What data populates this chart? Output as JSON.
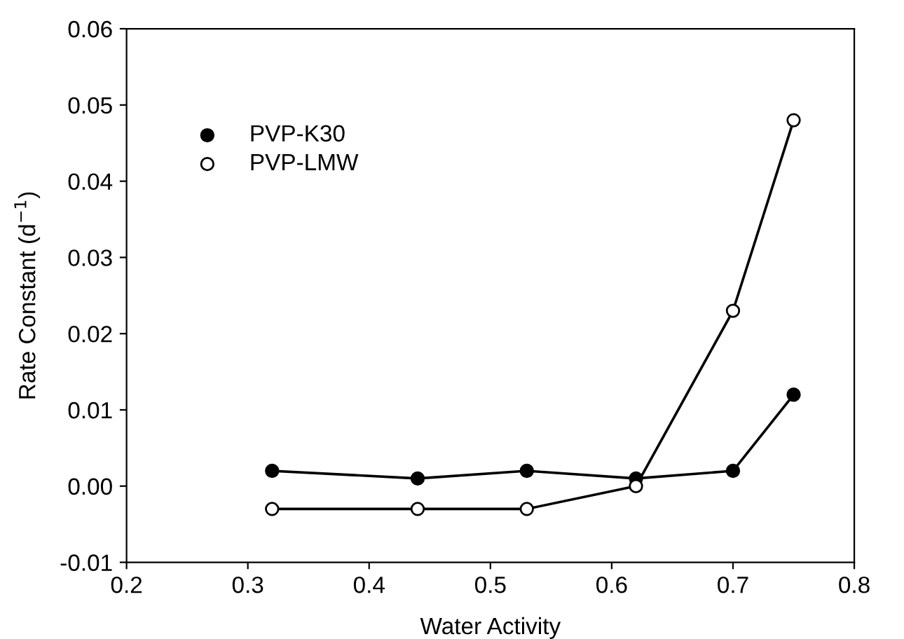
{
  "chart_data": {
    "type": "line",
    "xlabel": "Water Activity",
    "ylabel": "Rate Constant (d$^{−1}$)",
    "legend": "top left",
    "marker": "circle",
    "line_style": "solid",
    "grid": false,
    "xlim": [
      0.2,
      0.8
    ],
    "xticks": [
      0.2,
      0.3,
      0.4,
      0.5,
      0.6,
      0.7,
      0.8
    ],
    "ylim": [
      -0.01,
      0.06
    ],
    "yticks": [
      {
        "value": -0.01,
        "label": "-0.01"
      },
      {
        "value": 0,
        "label": "0.00"
      },
      {
        "value": 0.01,
        "label": "0.01"
      },
      {
        "value": 0.02,
        "label": "0.02"
      },
      {
        "value": 0.03,
        "label": "0.03"
      },
      {
        "value": 0.04,
        "label": "0.04"
      },
      {
        "value": 0.05,
        "label": "0.05"
      },
      {
        "value": 0.06,
        "label": "0.06"
      }
    ],
    "series": [
      {
        "name": "PVP-K30",
        "color": "#000000",
        "x": [
          0.32,
          0.44,
          0.53,
          0.62,
          0.7,
          0.75
        ],
        "values": [
          0.002,
          0.001,
          0.002,
          0.001,
          0.002,
          0.012
        ]
      },
      {
        "name": "PVP-LMW",
        "color": "#000000",
        "colors": [
          "#ffffff",
          "#ffffff",
          "#ffffff",
          "#ffffff",
          "#ffffff",
          "#ffffff"
        ],
        "x": [
          0.32,
          0.44,
          0.53,
          0.62,
          0.7,
          0.75
        ],
        "values": [
          -0.003,
          -0.003,
          -0.003,
          0.0,
          0.023,
          0.048
        ]
      }
    ]
  }
}
